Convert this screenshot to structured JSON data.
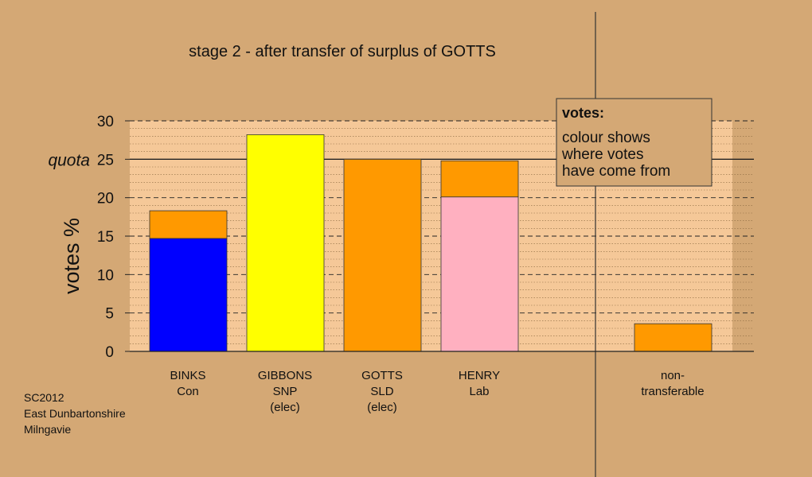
{
  "chart_data": {
    "type": "bar",
    "stacked": true,
    "title": "stage 2 - after transfer of surplus of GOTTS",
    "ylabel": "votes %",
    "ylim": [
      0,
      30
    ],
    "yticks": [
      0,
      5,
      10,
      15,
      20,
      25,
      30
    ],
    "grid": true,
    "quota": {
      "label": "quota",
      "value": 25
    },
    "categories": [
      {
        "lines": [
          "BINKS",
          "Con"
        ]
      },
      {
        "lines": [
          "GIBBONS",
          "SNP",
          "(elec)"
        ]
      },
      {
        "lines": [
          "GOTTS",
          "SLD",
          "(elec)"
        ]
      },
      {
        "lines": [
          "HENRY",
          "Lab"
        ]
      },
      {
        "lines": [
          "non-",
          "transferable"
        ]
      }
    ],
    "bars": [
      {
        "segments": [
          {
            "value": 14.7,
            "color": "#0000ff"
          },
          {
            "value": 3.6,
            "color": "#ff9900"
          }
        ]
      },
      {
        "segments": [
          {
            "value": 28.2,
            "color": "#ffff00"
          }
        ]
      },
      {
        "segments": [
          {
            "value": 25.0,
            "color": "#ff9900"
          }
        ]
      },
      {
        "segments": [
          {
            "value": 20.1,
            "color": "#ffb0c0"
          },
          {
            "value": 4.7,
            "color": "#ff9900"
          }
        ]
      },
      {
        "segments": [
          {
            "value": 3.6,
            "color": "#ff9900"
          }
        ]
      }
    ],
    "legend": {
      "title": "votes:",
      "lines": [
        "colour shows",
        "where votes",
        "have come from"
      ],
      "placement": "top-right"
    }
  },
  "footer": {
    "lines": [
      "SC2012",
      "East Dunbartonshire",
      "Milngavie"
    ]
  },
  "colors": {
    "background": "#d4a875",
    "plot_area": "#f5c898",
    "legend_box": "#d4a875"
  }
}
